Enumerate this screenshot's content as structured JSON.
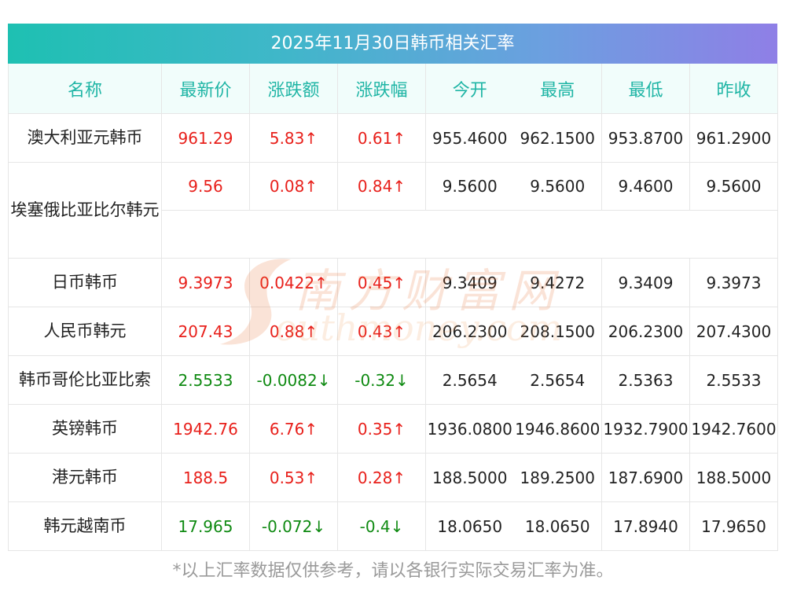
{
  "title": "2025年11月30日韩币相关汇率",
  "columns": [
    "名称",
    "最新价",
    "涨跌额",
    "涨跌幅",
    "今开",
    "最高",
    "最低",
    "昨收"
  ],
  "rows": [
    {
      "name": "澳大利亚元韩币",
      "latest": "961.29",
      "change": "5.83↑",
      "pct": "0.61↑",
      "open": "955.4600",
      "high": "962.1500",
      "low": "953.8700",
      "prev": "961.2900",
      "dir": "up"
    },
    {
      "name": "埃塞俄比亚比尔韩元",
      "latest": "9.56",
      "change": "0.08↑",
      "pct": "0.84↑",
      "open": "9.5600",
      "high": "9.5600",
      "low": "9.4600",
      "prev": "9.5600",
      "dir": "up"
    },
    {
      "name": "日币韩币",
      "latest": "9.3973",
      "change": "0.0422↑",
      "pct": "0.45↑",
      "open": "9.3409",
      "high": "9.4272",
      "low": "9.3409",
      "prev": "9.3973",
      "dir": "up"
    },
    {
      "name": "人民币韩元",
      "latest": "207.43",
      "change": "0.88↑",
      "pct": "0.43↑",
      "open": "206.2300",
      "high": "208.1500",
      "low": "206.2300",
      "prev": "207.4300",
      "dir": "up"
    },
    {
      "name": "韩币哥伦比亚比索",
      "latest": "2.5533",
      "change": "-0.0082↓",
      "pct": "-0.32↓",
      "open": "2.5654",
      "high": "2.5654",
      "low": "2.5363",
      "prev": "2.5533",
      "dir": "down"
    },
    {
      "name": "英镑韩币",
      "latest": "1942.76",
      "change": "6.76↑",
      "pct": "0.35↑",
      "open": "1936.0800",
      "high": "1946.8600",
      "low": "1932.7900",
      "prev": "1942.7600",
      "dir": "up"
    },
    {
      "name": "港元韩币",
      "latest": "188.5",
      "change": "0.53↑",
      "pct": "0.28↑",
      "open": "188.5000",
      "high": "189.2500",
      "low": "187.6900",
      "prev": "188.5000",
      "dir": "up"
    },
    {
      "name": "韩元越南币",
      "latest": "17.965",
      "change": "-0.072↓",
      "pct": "-0.4↓",
      "open": "18.0650",
      "high": "18.0650",
      "low": "17.8940",
      "prev": "17.9650",
      "dir": "down"
    }
  ],
  "watermark": {
    "cn": "南方财富网",
    "en": "outhmoney.com"
  },
  "note": "*以上汇率数据仅供参考，请以各银行实际交易汇率为准。",
  "colors": {
    "up": "#e8201b",
    "down": "#0f8a12",
    "header_text": "#1fb5a5",
    "title_gradient_start": "#1ec0b2",
    "title_gradient_end": "#8f7fe6"
  }
}
